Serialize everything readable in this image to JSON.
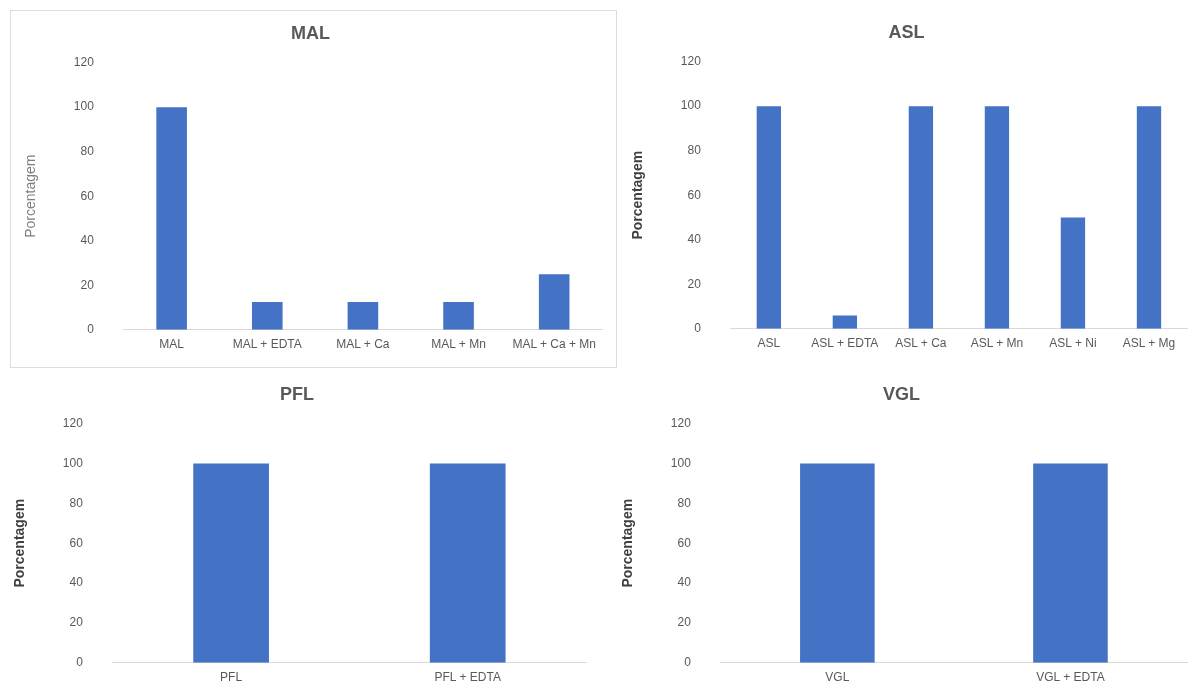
{
  "chart_data": [
    {
      "type": "bar",
      "title": "MAL",
      "ylabel": "Porcentagem",
      "categories": [
        "MAL",
        "MAL + EDTA",
        "MAL + Ca",
        "MAL + Mn",
        "MAL + Ca + Mn"
      ],
      "values": [
        100,
        12.5,
        12.5,
        12.5,
        25
      ],
      "color": "#4472c4",
      "ylim": [
        0,
        120
      ],
      "yticks": [
        0,
        20,
        40,
        60,
        80,
        100,
        120
      ],
      "grid": false,
      "legend": false
    },
    {
      "type": "bar",
      "title": "ASL",
      "ylabel": "Porcentagem",
      "categories": [
        "ASL",
        "ASL + EDTA",
        "ASL + Ca",
        "ASL + Mn",
        "ASL + Ni",
        "ASL + Mg"
      ],
      "values": [
        100,
        6,
        100,
        100,
        50,
        100
      ],
      "color": "#4472c4",
      "ylim": [
        0,
        120
      ],
      "yticks": [
        0,
        20,
        40,
        60,
        80,
        100,
        120
      ],
      "grid": false,
      "legend": false
    },
    {
      "type": "bar",
      "title": "PFL",
      "ylabel": "Porcentagem",
      "categories": [
        "PFL",
        "PFL + EDTA"
      ],
      "values": [
        100,
        100
      ],
      "color": "#4472c4",
      "ylim": [
        0,
        120
      ],
      "yticks": [
        0,
        20,
        40,
        60,
        80,
        100,
        120
      ],
      "grid": false,
      "legend": false
    },
    {
      "type": "bar",
      "title": "VGL",
      "ylabel": "Porcentagem",
      "categories": [
        "VGL",
        "VGL + EDTA"
      ],
      "values": [
        100,
        100
      ],
      "color": "#4472c4",
      "ylim": [
        0,
        120
      ],
      "yticks": [
        0,
        20,
        40,
        60,
        80,
        100,
        120
      ],
      "grid": false,
      "legend": false
    }
  ]
}
